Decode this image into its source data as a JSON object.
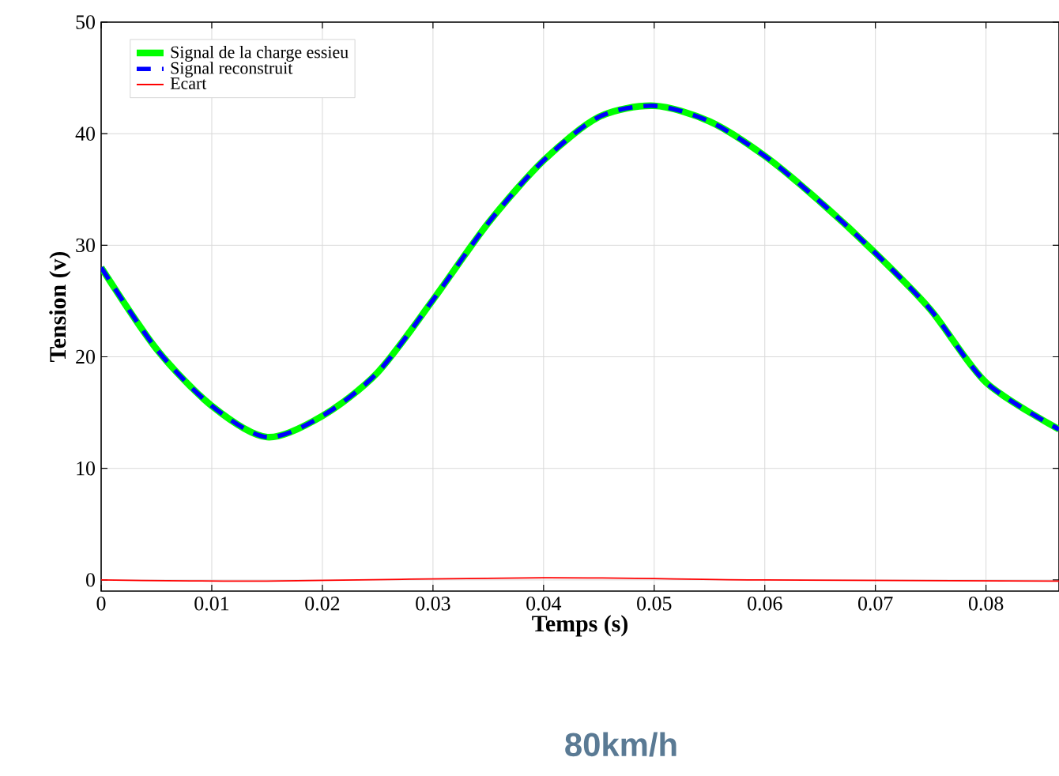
{
  "chart_data": {
    "type": "line",
    "xlabel": "Temps (s)",
    "ylabel": "Tension (v)",
    "annotations": [
      "80km/h"
    ],
    "xlim": [
      0,
      0.0866
    ],
    "ylim": [
      -1,
      50
    ],
    "xticks": [
      0,
      0.01,
      0.02,
      0.03,
      0.04,
      0.05,
      0.06,
      0.07,
      0.08
    ],
    "yticks": [
      0,
      10,
      20,
      30,
      40,
      50
    ],
    "grid": true,
    "legend": "top left",
    "series": [
      {
        "name": "Signal de la charge essieu",
        "color": "#00ff00",
        "line_style": "solid",
        "x": [
          0,
          0.005,
          0.01,
          0.015,
          0.02,
          0.025,
          0.03,
          0.035,
          0.04,
          0.045,
          0.05,
          0.055,
          0.06,
          0.065,
          0.07,
          0.075,
          0.08,
          0.0866
        ],
        "values": [
          28.0,
          20.7,
          15.6,
          12.8,
          14.7,
          18.6,
          25.1,
          32.0,
          37.6,
          41.5,
          42.5,
          41.1,
          38.0,
          33.9,
          29.3,
          24.2,
          17.7,
          13.5
        ]
      },
      {
        "name": "Signal reconstruit",
        "color": "#0000ff",
        "line_style": "dashed",
        "x": [
          0,
          0.005,
          0.01,
          0.015,
          0.02,
          0.025,
          0.03,
          0.035,
          0.04,
          0.045,
          0.05,
          0.055,
          0.06,
          0.065,
          0.07,
          0.075,
          0.08,
          0.0866
        ],
        "values": [
          28.0,
          20.7,
          15.6,
          12.8,
          14.7,
          18.6,
          25.1,
          32.0,
          37.6,
          41.5,
          42.5,
          41.1,
          38.0,
          33.9,
          29.3,
          24.2,
          17.7,
          13.5
        ]
      },
      {
        "name": "Ecart",
        "color": "#ff0000",
        "line_style": "solid",
        "x": [
          0,
          0.015,
          0.04,
          0.06,
          0.0866
        ],
        "values": [
          0,
          -0.1,
          0.2,
          0,
          -0.1
        ]
      }
    ]
  }
}
